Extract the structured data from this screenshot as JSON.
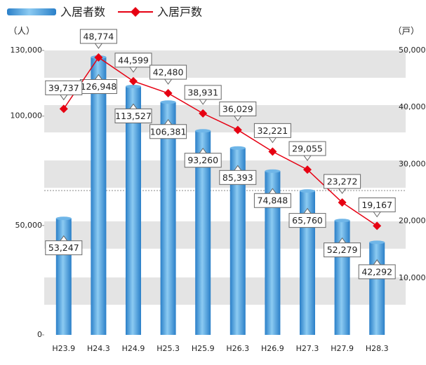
{
  "chart_data": {
    "type": "bar-line",
    "y_label": "（人）",
    "y2_label": "（戸）",
    "categories": [
      "H23.9",
      "H24.3",
      "H24.9",
      "H25.3",
      "H25.9",
      "H26.3",
      "H26.9",
      "H27.3",
      "H27.9",
      "H28.3"
    ],
    "series": [
      {
        "name": "入居者数",
        "type": "bar",
        "color": "#4a9fdc",
        "values": [
          53247,
          126948,
          113527,
          106381,
          93260,
          85393,
          74848,
          65760,
          52279,
          42292
        ],
        "value_labels": [
          "53,247",
          "126,948",
          "113,527",
          "106,381",
          "93,260",
          "85,393",
          "74,848",
          "65,760",
          "52,279",
          "42,292"
        ]
      },
      {
        "name": "入居戸数",
        "type": "line",
        "axis": "y2",
        "color": "#e60012",
        "values": [
          39737,
          48774,
          44599,
          42480,
          38931,
          36029,
          32221,
          29055,
          23272,
          19167
        ],
        "value_labels": [
          "39,737",
          "48,774",
          "44,599",
          "42,480",
          "38,931",
          "36,029",
          "32,221",
          "29,055",
          "23,272",
          "19,167"
        ]
      }
    ],
    "ylim": [
      0,
      130000
    ],
    "yticks": [
      0,
      {
        "value": 50000,
        "label": "50,000"
      },
      {
        "value": 100000,
        "label": "100,000"
      },
      {
        "value": 130000,
        "label": "130,000"
      }
    ],
    "y2lim": [
      0,
      50000
    ],
    "y2ticks": [
      {
        "value": 10000,
        "label": "10,000"
      },
      {
        "value": 20000,
        "label": "20,000"
      },
      {
        "value": 30000,
        "label": "30,000"
      },
      {
        "value": 40000,
        "label": "40,000"
      },
      {
        "value": 50000,
        "label": "50,000"
      }
    ]
  }
}
